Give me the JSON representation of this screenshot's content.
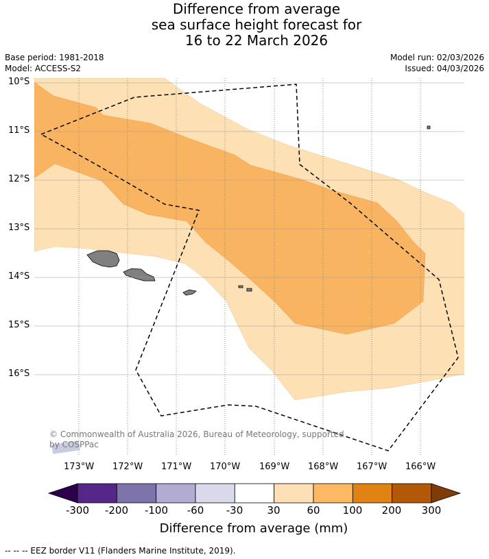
{
  "title": {
    "line1": "Difference from average",
    "line2": "sea surface height forecast for",
    "line3": "16 to 22 March 2026"
  },
  "meta": {
    "base_period": "Base period: 1981-2018",
    "model": "Model: ACCESS-S2",
    "model_run": "Model run: 02/03/2026",
    "issued": "Issued: 04/03/2026"
  },
  "map": {
    "latitudes": [
      "10°S",
      "11°S",
      "12°S",
      "13°S",
      "14°S",
      "15°S",
      "16°S"
    ],
    "longitudes": [
      "173°W",
      "172°W",
      "171°W",
      "170°W",
      "169°W",
      "168°W",
      "167°W",
      "166°W"
    ],
    "copyright": "© Commonwealth of Australia 2026, Bureau of Meteorology, supported",
    "copyright_line2": "by COSPPac",
    "colors": {
      "band_30_60": "#fde0b4",
      "band_60_100": "#f9b462",
      "land": "#808080",
      "eez": "#000000"
    }
  },
  "colorbar": {
    "ticks": [
      "-300",
      "-200",
      "-100",
      "-60",
      "-30",
      "30",
      "60",
      "100",
      "200",
      "300"
    ],
    "colors": [
      "#2d004b",
      "#542788",
      "#8073ac",
      "#b2abd2",
      "#d8daeb",
      "#ffffff",
      "#fee0b6",
      "#fdb863",
      "#e08214",
      "#b35806",
      "#7f3b08"
    ],
    "label": "Difference from average (mm)"
  },
  "footer": "--  --  -- EEZ border V11 (Flanders Marine Institute, 2019)."
}
